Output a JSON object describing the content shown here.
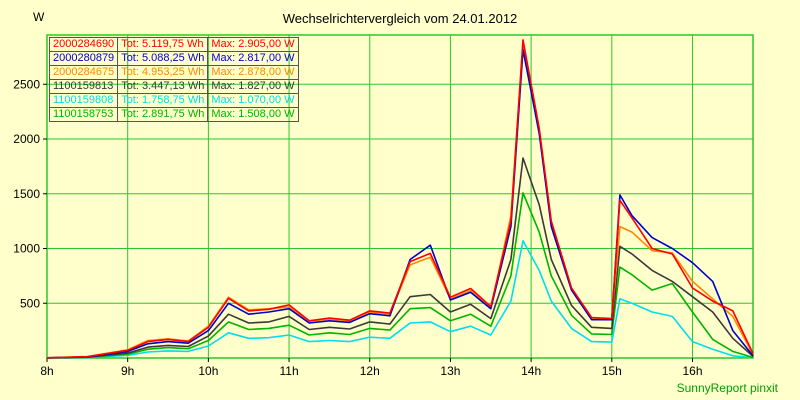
{
  "footer": "SunnyReport pinxit",
  "colors": {
    "background": "#FFFFCC",
    "grid": "#2DC52D",
    "axis_text": "#000000"
  },
  "chart_data": {
    "type": "line",
    "title": "Wechselrichtervergleich vom 24.01.2012",
    "y_unit_label": "W",
    "xlabel": "",
    "ylabel": "W",
    "xlim": [
      8,
      16.75
    ],
    "ylim": [
      0,
      2950
    ],
    "grid": true,
    "legend_position": "top-left",
    "x_ticks": [
      8,
      9,
      10,
      11,
      12,
      13,
      14,
      15,
      16
    ],
    "x_tick_labels": [
      "8h",
      "9h",
      "10h",
      "11h",
      "12h",
      "13h",
      "14h",
      "15h",
      "16h"
    ],
    "y_ticks": [
      500,
      1000,
      1500,
      2000,
      2500
    ],
    "y_tick_labels": [
      "500",
      "1000",
      "1500",
      "2000",
      "2500"
    ],
    "x": [
      8,
      8.5,
      9,
      9.25,
      9.5,
      9.75,
      10,
      10.25,
      10.5,
      10.75,
      11,
      11.25,
      11.5,
      11.75,
      12,
      12.25,
      12.5,
      12.75,
      13,
      13.25,
      13.5,
      13.75,
      13.9,
      14.1,
      14.25,
      14.5,
      14.75,
      15,
      15.1,
      15.25,
      15.5,
      15.75,
      16,
      16.25,
      16.5,
      16.75
    ],
    "series": [
      {
        "id": "2000284690",
        "color": "#FF0000",
        "tot_label": "Tot: 5.119,75 Wh",
        "max_label": "Max: 2.905,00 W",
        "values": [
          2,
          12,
          70,
          150,
          170,
          150,
          280,
          545,
          430,
          445,
          485,
          340,
          365,
          345,
          430,
          410,
          880,
          955,
          555,
          635,
          470,
          1250,
          2905,
          2100,
          1250,
          640,
          370,
          360,
          1440,
          1280,
          1000,
          950,
          640,
          520,
          430,
          40
        ]
      },
      {
        "id": "2000280879",
        "color": "#0000CC",
        "tot_label": "Tot: 5.088,25 Wh",
        "max_label": "Max: 2.817,00 W",
        "values": [
          2,
          10,
          60,
          130,
          150,
          135,
          250,
          500,
          400,
          420,
          450,
          320,
          340,
          325,
          405,
          385,
          900,
          1030,
          530,
          600,
          450,
          1200,
          2817,
          2050,
          1200,
          620,
          350,
          350,
          1490,
          1300,
          1100,
          1000,
          870,
          700,
          250,
          20
        ]
      },
      {
        "id": "2000284675",
        "color": "#FF8800",
        "tot_label": "Tot: 4.953,25 Wh",
        "max_label": "Max: 2.878,00 W",
        "values": [
          2,
          14,
          75,
          160,
          175,
          155,
          290,
          555,
          440,
          450,
          465,
          335,
          355,
          340,
          420,
          400,
          850,
          920,
          540,
          615,
          455,
          1300,
          2878,
          2080,
          1230,
          630,
          360,
          355,
          1200,
          1150,
          980,
          960,
          700,
          540,
          380,
          30
        ]
      },
      {
        "id": "1100159813",
        "color": "#3A3A3A",
        "tot_label": "Tot: 3.447,13 Wh",
        "max_label": "Max: 1.827,00 W",
        "values": [
          1,
          8,
          45,
          100,
          115,
          105,
          200,
          400,
          320,
          330,
          380,
          260,
          280,
          265,
          330,
          310,
          560,
          580,
          420,
          490,
          360,
          900,
          1827,
          1400,
          900,
          480,
          280,
          270,
          1020,
          950,
          800,
          700,
          560,
          420,
          180,
          15
        ]
      },
      {
        "id": "1100159808",
        "color": "#00DDEE",
        "tot_label": "Tot: 1.758,75 Wh",
        "max_label": "Max: 1.070,00 W",
        "values": [
          1,
          4,
          25,
          55,
          65,
          60,
          110,
          230,
          180,
          185,
          210,
          150,
          160,
          150,
          190,
          180,
          320,
          330,
          240,
          290,
          210,
          520,
          1070,
          800,
          520,
          270,
          150,
          145,
          540,
          500,
          420,
          380,
          150,
          80,
          20,
          2
        ]
      },
      {
        "id": "1100158753",
        "color": "#00B400",
        "tot_label": "Tot: 2.891,75 Wh",
        "max_label": "Max: 1.508,00 W",
        "values": [
          1,
          6,
          35,
          80,
          95,
          85,
          160,
          330,
          260,
          270,
          300,
          210,
          230,
          215,
          270,
          255,
          450,
          460,
          340,
          400,
          290,
          750,
          1508,
          1150,
          750,
          390,
          220,
          215,
          830,
          760,
          620,
          680,
          420,
          170,
          60,
          5
        ]
      }
    ]
  }
}
